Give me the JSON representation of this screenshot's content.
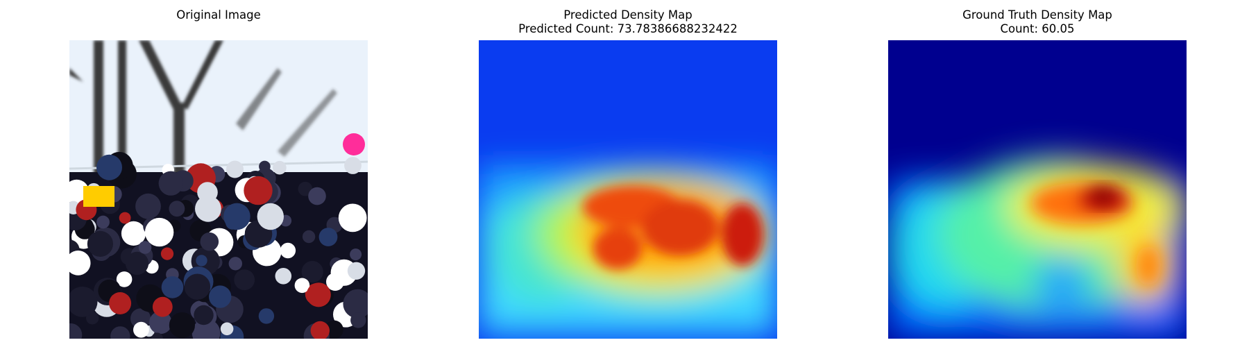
{
  "panels": [
    {
      "title_line1": "Original Image",
      "title_line2": ""
    },
    {
      "title_line1": "Predicted Density Map",
      "title_line2": "Predicted Count: 73.78386688232422"
    },
    {
      "title_line1": "Ground Truth Density Map",
      "title_line2": "Count: 60.05"
    }
  ],
  "colormap": "jet",
  "colors": {
    "background": "#ffffff",
    "jet_low": "#00007f",
    "jet_high": "#7f0000"
  }
}
